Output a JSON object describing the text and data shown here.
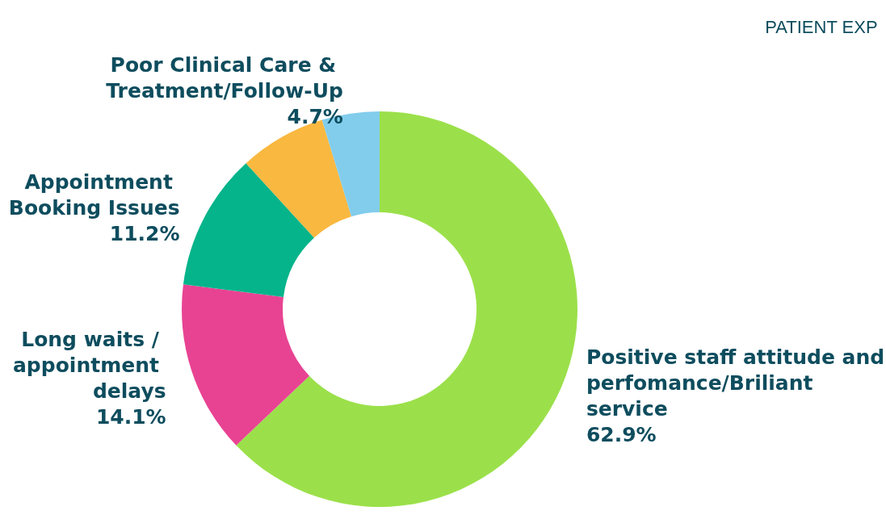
{
  "chart_data": {
    "type": "donut",
    "categories": [
      "Positive staff attitude and perfomance/Briliant service",
      "Long waits / appointment delays",
      "Appointment Booking Issues",
      null,
      "Poor Clinical Care & Treatment/Follow-Up"
    ],
    "values": [
      62.9,
      14.1,
      11.2,
      7.1,
      4.7
    ],
    "value_labels": [
      "62.9%",
      "14.1%",
      "11.2%",
      null,
      "4.7%"
    ],
    "colors": [
      "#9be04a",
      "#e84393",
      "#05b48a",
      "#f9b840",
      "#82cdec"
    ],
    "annotations": [
      "PATIENT EXP"
    ],
    "legend": false
  }
}
